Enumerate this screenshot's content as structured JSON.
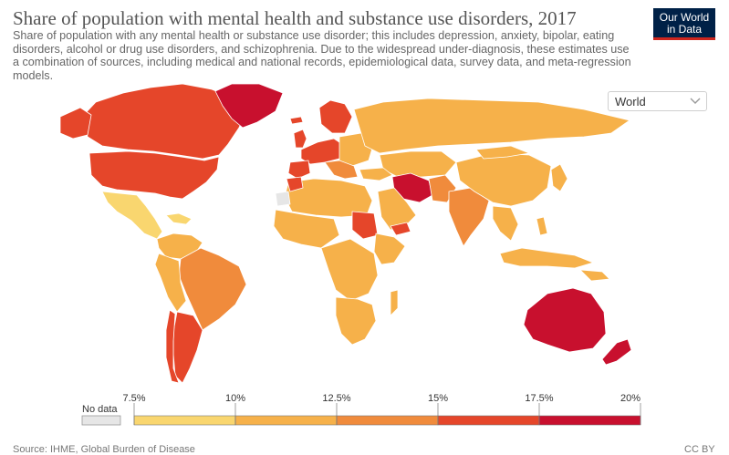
{
  "header": {
    "title": "Share of population with mental health and substance use disorders, 2017",
    "subtitle": "Share of population with any mental health or substance use disorder; this includes depression, anxiety, bipolar, eating disorders, alcohol or drug use disorders, and schizophrenia. Due to the widespread under-diagnosis, these estimates use a combination of sources, including medical and national records, epidemiological data, survey data, and meta-regression models."
  },
  "logo": {
    "line1": "Our World",
    "line2": "in Data",
    "background": "#002147",
    "accent": "#ce261e"
  },
  "region_selector": {
    "value": "World",
    "icon": "chevron-down-icon"
  },
  "legend": {
    "no_data_label": "No data",
    "no_data_color": "#e6e6e6",
    "bins": [
      {
        "from": 7.5,
        "to": 10,
        "color": "#f9d66f"
      },
      {
        "from": 10,
        "to": 12.5,
        "color": "#f6b14a"
      },
      {
        "from": 12.5,
        "to": 15,
        "color": "#f08b3c"
      },
      {
        "from": 15,
        "to": 17.5,
        "color": "#e5462a"
      },
      {
        "from": 17.5,
        "to": 20,
        "color": "#c8102e"
      }
    ],
    "ticks": [
      "7.5%",
      "10%",
      "12.5%",
      "15%",
      "17.5%",
      "20%"
    ]
  },
  "footer": {
    "source": "Source: IHME, Global Burden of Disease",
    "license": "CC BY"
  }
}
